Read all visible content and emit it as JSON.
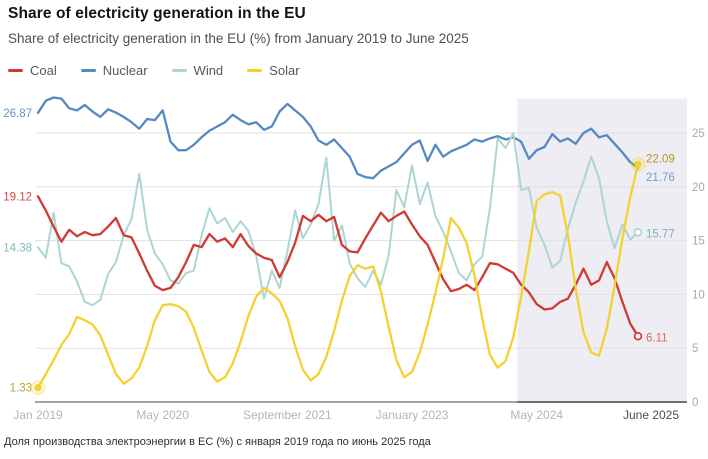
{
  "header": {
    "title": "Share of electricity generation in the EU",
    "subtitle": "Share of electricity generation in the EU (%) from January 2019 to June 2025"
  },
  "legend": [
    {
      "label": "Coal",
      "color": "#cf3a35"
    },
    {
      "label": "Nuclear",
      "color": "#5589c2"
    },
    {
      "label": "Wind",
      "color": "#abd6d4"
    },
    {
      "label": "Solar",
      "color": "#f5d130"
    }
  ],
  "footer": {
    "caption": "Доля производства электроэнергии в ЕС (%) с января 2019 года по июнь 2025 года"
  },
  "chart_data": {
    "type": "line",
    "title": "Share of electricity generation in the EU",
    "ylabel": "%",
    "ylim": [
      0,
      28.2
    ],
    "grid": true,
    "grid_color": "#e0e0e0",
    "axis_line_color": "#a3a3a3",
    "axis_line_dark_color": "#6f6f6f",
    "axis_text_color": "#a9a9a9",
    "x_tick_color": "#b5b5b5",
    "x_tick_emphasis_color": "#4c4c4c",
    "y_ticks": [
      0,
      5,
      10,
      15,
      20,
      25
    ],
    "highlight_region": {
      "from_month_index": 61.5,
      "color": "#ededf3"
    },
    "x_ticks": [
      {
        "label": "Jan 2019",
        "month_index": 0
      },
      {
        "label": "May 2020",
        "month_index": 16
      },
      {
        "label": "September 2021",
        "month_index": 32
      },
      {
        "label": "January 2023",
        "month_index": 48
      },
      {
        "label": "May 2024",
        "month_index": 64
      },
      {
        "label": "June 2025",
        "month_index": 77,
        "x": 651,
        "emphasis": true
      }
    ],
    "left_labels": [
      {
        "text": "26.87",
        "value": 26.87,
        "color": "#5d93c8"
      },
      {
        "text": "19.12",
        "value": 19.12,
        "color": "#cf4a42"
      },
      {
        "text": "14.38",
        "value": 14.38,
        "color": "#82b7b6"
      },
      {
        "text": "1.33",
        "value": 1.33,
        "color": "#bfa32a"
      }
    ],
    "right_labels": [
      {
        "text": "22.09",
        "value": 22.09,
        "dy": -6,
        "color": "#b2992e"
      },
      {
        "text": "21.76",
        "value": 21.76,
        "dy": 9,
        "color": "#6fa0cf"
      },
      {
        "text": "15.77",
        "value": 15.77,
        "dy": 1,
        "color": "#7ab4b3"
      },
      {
        "text": "6.11",
        "value": 6.11,
        "dy": 1,
        "color": "#dd6a60"
      }
    ],
    "months": [
      "2019-01",
      "2019-02",
      "2019-03",
      "2019-04",
      "2019-05",
      "2019-06",
      "2019-07",
      "2019-08",
      "2019-09",
      "2019-10",
      "2019-11",
      "2019-12",
      "2020-01",
      "2020-02",
      "2020-03",
      "2020-04",
      "2020-05",
      "2020-06",
      "2020-07",
      "2020-08",
      "2020-09",
      "2020-10",
      "2020-11",
      "2020-12",
      "2021-01",
      "2021-02",
      "2021-03",
      "2021-04",
      "2021-05",
      "2021-06",
      "2021-07",
      "2021-08",
      "2021-09",
      "2021-10",
      "2021-11",
      "2021-12",
      "2022-01",
      "2022-02",
      "2022-03",
      "2022-04",
      "2022-05",
      "2022-06",
      "2022-07",
      "2022-08",
      "2022-09",
      "2022-10",
      "2022-11",
      "2022-12",
      "2023-01",
      "2023-02",
      "2023-03",
      "2023-04",
      "2023-05",
      "2023-06",
      "2023-07",
      "2023-08",
      "2023-09",
      "2023-10",
      "2023-11",
      "2023-12",
      "2024-01",
      "2024-02",
      "2024-03",
      "2024-04",
      "2024-05",
      "2024-06",
      "2024-07",
      "2024-08",
      "2024-09",
      "2024-10",
      "2024-11",
      "2024-12",
      "2025-01",
      "2025-02",
      "2025-03",
      "2025-04",
      "2025-05",
      "2025-06"
    ],
    "series": [
      {
        "name": "Nuclear",
        "color": "#5589c2",
        "width": 2.3,
        "start_marker": null,
        "end_marker": null,
        "values": [
          26.87,
          28.0,
          28.3,
          28.2,
          27.3,
          27.1,
          27.6,
          27.0,
          26.5,
          27.2,
          26.9,
          26.5,
          26.0,
          25.4,
          26.3,
          26.2,
          27.1,
          24.2,
          23.4,
          23.4,
          23.9,
          24.6,
          25.2,
          25.6,
          26.0,
          26.7,
          26.2,
          25.8,
          26.0,
          25.3,
          25.6,
          27.0,
          27.7,
          27.1,
          26.5,
          25.6,
          24.3,
          23.9,
          24.4,
          23.6,
          22.8,
          21.2,
          20.9,
          20.8,
          21.5,
          21.9,
          22.3,
          23.1,
          23.9,
          24.3,
          22.4,
          23.9,
          22.8,
          23.3,
          23.6,
          23.9,
          24.4,
          24.2,
          24.5,
          24.7,
          24.4,
          24.6,
          24.2,
          22.6,
          23.4,
          23.7,
          24.9,
          24.2,
          24.5,
          24.0,
          25.0,
          25.4,
          24.6,
          24.8,
          24.0,
          23.2,
          22.3,
          21.76
        ]
      },
      {
        "name": "Wind",
        "color": "#abd6d4",
        "width": 2.0,
        "start_marker": null,
        "end_marker": "ring",
        "values": [
          14.38,
          13.4,
          17.6,
          12.9,
          12.6,
          11.2,
          9.3,
          9.0,
          9.5,
          11.9,
          13.0,
          15.5,
          17.0,
          21.2,
          16.0,
          13.8,
          12.8,
          11.3,
          11.0,
          12.0,
          12.2,
          15.5,
          18.0,
          16.6,
          17.1,
          15.8,
          16.8,
          15.9,
          13.6,
          9.6,
          12.2,
          10.6,
          14.0,
          17.8,
          15.2,
          16.5,
          18.4,
          22.7,
          15.0,
          16.4,
          12.9,
          11.5,
          10.7,
          12.2,
          10.9,
          13.6,
          19.7,
          18.1,
          22.0,
          18.4,
          20.4,
          17.3,
          15.8,
          14.0,
          12.0,
          11.3,
          12.8,
          13.5,
          18.0,
          24.5,
          23.6,
          25.0,
          19.7,
          19.9,
          16.2,
          14.6,
          12.5,
          13.1,
          16.1,
          18.5,
          20.5,
          22.8,
          20.8,
          16.8,
          14.3,
          16.5,
          15.1,
          15.77
        ]
      },
      {
        "name": "Coal",
        "color": "#cf3a35",
        "width": 2.3,
        "start_marker": null,
        "end_marker": "ring",
        "values": [
          19.12,
          17.8,
          16.3,
          14.9,
          16.0,
          15.4,
          15.8,
          15.5,
          15.6,
          16.3,
          17.1,
          15.5,
          15.3,
          13.8,
          12.2,
          10.8,
          10.4,
          10.6,
          11.6,
          13.0,
          14.6,
          14.4,
          15.6,
          14.9,
          15.2,
          14.4,
          15.6,
          14.5,
          13.8,
          13.4,
          13.2,
          11.6,
          13.0,
          14.8,
          17.3,
          16.8,
          17.4,
          16.8,
          17.2,
          14.6,
          14.0,
          13.9,
          15.2,
          16.4,
          17.6,
          16.8,
          17.3,
          17.7,
          16.5,
          15.4,
          14.6,
          13.0,
          11.4,
          10.3,
          10.5,
          10.9,
          10.4,
          11.6,
          12.9,
          12.8,
          12.4,
          12.0,
          10.9,
          10.2,
          9.1,
          8.6,
          8.7,
          9.3,
          9.6,
          10.9,
          12.4,
          10.9,
          11.3,
          13.0,
          11.5,
          9.3,
          7.3,
          6.11
        ]
      },
      {
        "name": "Solar",
        "color": "#f5d130",
        "width": 2.3,
        "start_marker": "dot",
        "end_marker": "dot",
        "values": [
          1.33,
          2.6,
          3.9,
          5.3,
          6.3,
          7.9,
          7.6,
          7.2,
          6.2,
          4.4,
          2.6,
          1.7,
          2.2,
          3.2,
          5.2,
          7.6,
          9.0,
          9.1,
          8.9,
          8.4,
          6.9,
          4.8,
          2.8,
          1.9,
          2.3,
          3.6,
          5.6,
          8.0,
          9.8,
          10.6,
          10.1,
          9.4,
          7.8,
          5.2,
          3.0,
          2.0,
          2.6,
          4.2,
          6.6,
          9.4,
          11.7,
          12.7,
          12.4,
          12.6,
          10.3,
          7.0,
          3.9,
          2.3,
          2.8,
          4.6,
          7.2,
          10.1,
          13.4,
          17.1,
          16.2,
          14.8,
          11.8,
          7.8,
          4.4,
          3.2,
          3.8,
          6.0,
          9.8,
          14.0,
          18.7,
          19.3,
          19.5,
          19.2,
          15.5,
          10.5,
          6.5,
          4.6,
          4.3,
          6.8,
          10.8,
          15.2,
          19.0,
          22.09
        ]
      }
    ]
  }
}
